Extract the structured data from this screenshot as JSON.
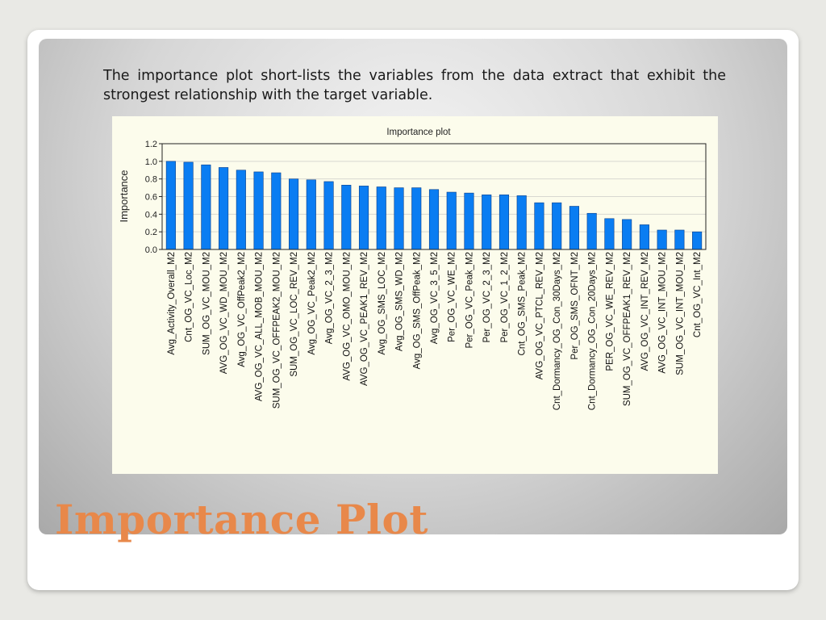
{
  "slide": {
    "description": "The importance plot short-lists the variables from the data extract that exhibit the strongest relationship with the target variable.",
    "title": "Importance Plot"
  },
  "colors": {
    "bar": "#0a7df2",
    "title": "#e8884a",
    "chart_bg": "#fcfcec"
  },
  "chart_data": {
    "type": "bar",
    "title": "Importance plot",
    "xlabel": "",
    "ylabel": "Importance",
    "ylim": [
      0,
      1.2
    ],
    "yticks": [
      "0.0",
      "0.2",
      "0.4",
      "0.6",
      "0.8",
      "1.0",
      "1.2"
    ],
    "grid": true,
    "categories": [
      "Avg_Activity_Overall_M2",
      "Cnt_OG_VC_Loc_M2",
      "SUM_OG_VC_MOU_M2",
      "AVG_OG_VC_WD_MOU_M2",
      "Avg_OG_VC_OffPeak2_M2",
      "AVG_OG_VC_ALL_MOB_MOU_M2",
      "SUM_OG_VC_OFFPEAK2_MOU_M2",
      "SUM_OG_VC_LOC_REV_M2",
      "Avg_OG_VC_Peak2_M2",
      "Avg_OG_VC_2_3_M2",
      "AVG_OG_VC_OMO_MOU_M2",
      "AVG_OG_VC_PEAK1_REV_M2",
      "Avg_OG_SMS_LOC_M2",
      "Avg_OG_SMS_WD_M2",
      "Avg_OG_SMS_OffPeak_M2",
      "Avg_OG_VC_3_5_M2",
      "Per_OG_VC_WE_M2",
      "Per_OG_VC_Peak_M2",
      "Per_OG_VC_2_3_M2",
      "Per_OG_VC_1_2_M2",
      "Cnt_OG_SMS_Peak_M2",
      "AVG_OG_VC_PTCL_REV_M2",
      "Cnt_Dormancy_OG_Con_30Days_M2",
      "Per_OG_SMS_OFNT_M2",
      "Cnt_Dormancy_OG_Con_20Days_M2",
      "PER_OG_VC_WE_REV_M2",
      "SUM_OG_VC_OFFPEAK1_REV_M2",
      "AVG_OG_VC_INT_REV_M2",
      "AVG_OG_VC_INT_MOU_M2",
      "SUM_OG_VC_INT_MOU_M2",
      "Cnt_OG_VC_Int_M2"
    ],
    "values": [
      1.0,
      0.99,
      0.96,
      0.93,
      0.9,
      0.88,
      0.87,
      0.8,
      0.79,
      0.77,
      0.73,
      0.72,
      0.71,
      0.7,
      0.7,
      0.68,
      0.65,
      0.64,
      0.62,
      0.62,
      0.61,
      0.53,
      0.53,
      0.49,
      0.41,
      0.35,
      0.34,
      0.28,
      0.22,
      0.22,
      0.2
    ]
  }
}
